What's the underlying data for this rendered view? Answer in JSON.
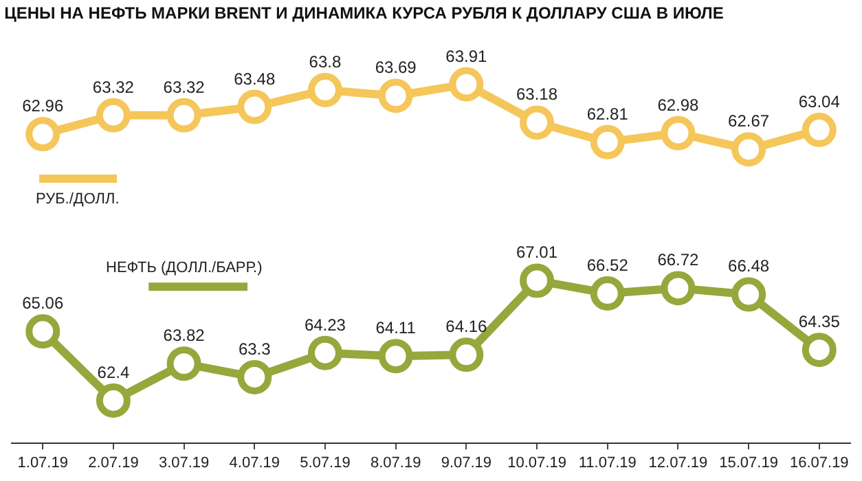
{
  "chart_data": [
    {
      "type": "line",
      "title": "ЦЕНЫ НА НЕФТЬ МАРКИ BRENT И ДИНАМИКА КУРСА РУБЛЯ К ДОЛЛАРУ США В ИЮЛЕ",
      "categories": [
        "1.07.19",
        "2.07.19",
        "3.07.19",
        "4.07.19",
        "5.07.19",
        "8.07.19",
        "9.07.19",
        "10.07.19",
        "11.07.19",
        "12.07.19",
        "15.07.19",
        "16.07.19"
      ],
      "series": [
        {
          "name": "РУБ./ДОЛЛ.",
          "color": "#f5c65a",
          "values": [
            62.96,
            63.32,
            63.32,
            63.48,
            63.8,
            63.69,
            63.91,
            63.18,
            62.81,
            62.98,
            62.67,
            63.04
          ]
        }
      ],
      "tick_labels": false,
      "data_labels": true,
      "marker": "circle",
      "line_style": "solid",
      "legend": "bottom left"
    },
    {
      "type": "line",
      "categories": [
        "1.07.19",
        "2.07.19",
        "3.07.19",
        "4.07.19",
        "5.07.19",
        "8.07.19",
        "9.07.19",
        "10.07.19",
        "11.07.19",
        "12.07.19",
        "15.07.19",
        "16.07.19"
      ],
      "series": [
        {
          "name": "НЕФТЬ (ДОЛЛ./БАРР.)",
          "color": "#94a83c",
          "values": [
            65.06,
            62.4,
            63.82,
            63.3,
            64.23,
            64.11,
            64.16,
            67.01,
            66.52,
            66.72,
            66.48,
            64.35
          ]
        }
      ],
      "tick_labels": "x",
      "data_labels": true,
      "marker": "circle",
      "line_style": "solid",
      "legend": "top left"
    }
  ]
}
